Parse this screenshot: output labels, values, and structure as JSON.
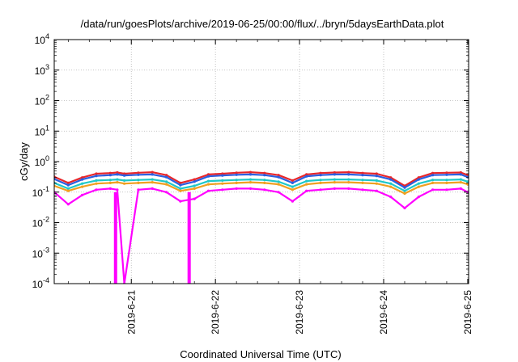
{
  "chart_data": {
    "type": "line",
    "title": "/data/run/goesPlots/archive/2019-06-25/00:00/flux/../bryn/5daysEarthData.plot",
    "xlabel": "Coordinated Universal Time (UTC)",
    "ylabel": "cGy/day",
    "yscale": "log",
    "ylim": [
      0.0001,
      10000
    ],
    "xlim": [
      "2019-06-20T02:00",
      "2019-06-25T00:15"
    ],
    "y_ticks": [
      {
        "value": 0.0001,
        "base": "10",
        "exp": "-4"
      },
      {
        "value": 0.001,
        "base": "10",
        "exp": "-3"
      },
      {
        "value": 0.01,
        "base": "10",
        "exp": "-2"
      },
      {
        "value": 0.1,
        "base": "10",
        "exp": "-1"
      },
      {
        "value": 1,
        "base": "10",
        "exp": "0"
      },
      {
        "value": 10,
        "base": "10",
        "exp": "1"
      },
      {
        "value": 100,
        "base": "10",
        "exp": "2"
      },
      {
        "value": 1000,
        "base": "10",
        "exp": "3"
      },
      {
        "value": 10000,
        "base": "10",
        "exp": "4"
      }
    ],
    "x_ticks": [
      "2019-6-21",
      "2019-6-22",
      "2019-6-23",
      "2019-6-24",
      "2019-6-25"
    ],
    "grid": true,
    "x": [
      "2019-06-20T02:00",
      "2019-06-20T06:00",
      "2019-06-20T10:00",
      "2019-06-20T14:00",
      "2019-06-20T18:00",
      "2019-06-20T20:00",
      "2019-06-20T22:00",
      "2019-06-21T02:00",
      "2019-06-21T06:00",
      "2019-06-21T10:00",
      "2019-06-21T14:00",
      "2019-06-21T18:00",
      "2019-06-21T22:00",
      "2019-06-22T02:00",
      "2019-06-22T06:00",
      "2019-06-22T10:00",
      "2019-06-22T14:00",
      "2019-06-22T18:00",
      "2019-06-22T22:00",
      "2019-06-23T02:00",
      "2019-06-23T06:00",
      "2019-06-23T10:00",
      "2019-06-23T14:00",
      "2019-06-23T18:00",
      "2019-06-23T22:00",
      "2019-06-24T02:00",
      "2019-06-24T06:00",
      "2019-06-24T10:00",
      "2019-06-24T14:00",
      "2019-06-24T18:00",
      "2019-06-24T22:00",
      "2019-06-25T00:00"
    ],
    "series": [
      {
        "color": "#e8262a",
        "values": [
          0.32,
          0.2,
          0.3,
          0.4,
          0.42,
          0.44,
          0.4,
          0.43,
          0.45,
          0.36,
          0.2,
          0.26,
          0.38,
          0.4,
          0.43,
          0.45,
          0.42,
          0.36,
          0.24,
          0.38,
          0.42,
          0.44,
          0.45,
          0.42,
          0.4,
          0.3,
          0.16,
          0.3,
          0.42,
          0.43,
          0.44,
          0.36
        ]
      },
      {
        "color": "#2a5fe0",
        "values": [
          0.27,
          0.17,
          0.26,
          0.34,
          0.36,
          0.38,
          0.35,
          0.37,
          0.38,
          0.31,
          0.17,
          0.22,
          0.33,
          0.35,
          0.37,
          0.38,
          0.36,
          0.31,
          0.2,
          0.33,
          0.36,
          0.38,
          0.38,
          0.36,
          0.34,
          0.26,
          0.14,
          0.26,
          0.36,
          0.37,
          0.38,
          0.31
        ]
      },
      {
        "color": "#1fc8c8",
        "values": [
          0.2,
          0.13,
          0.19,
          0.24,
          0.25,
          0.26,
          0.24,
          0.25,
          0.26,
          0.22,
          0.13,
          0.16,
          0.23,
          0.24,
          0.25,
          0.26,
          0.25,
          0.22,
          0.15,
          0.23,
          0.25,
          0.26,
          0.26,
          0.25,
          0.24,
          0.19,
          0.11,
          0.19,
          0.25,
          0.25,
          0.26,
          0.22
        ]
      },
      {
        "color": "#f0a020",
        "values": [
          0.16,
          0.11,
          0.15,
          0.19,
          0.2,
          0.21,
          0.19,
          0.2,
          0.21,
          0.18,
          0.11,
          0.13,
          0.18,
          0.19,
          0.2,
          0.21,
          0.2,
          0.18,
          0.12,
          0.18,
          0.2,
          0.21,
          0.21,
          0.2,
          0.19,
          0.15,
          0.09,
          0.15,
          0.2,
          0.2,
          0.21,
          0.18
        ]
      },
      {
        "color": "#ff00ff",
        "values": [
          0.1,
          0.04,
          0.08,
          0.12,
          0.13,
          0.12,
          0.0001,
          0.12,
          0.13,
          0.1,
          0.05,
          0.06,
          0.11,
          0.12,
          0.13,
          0.13,
          0.12,
          0.1,
          0.05,
          0.11,
          0.12,
          0.13,
          0.13,
          0.12,
          0.11,
          0.07,
          0.03,
          0.07,
          0.12,
          0.12,
          0.13,
          0.1
        ]
      }
    ],
    "dropouts_to_floor": [
      "2019-06-20T19:30",
      "2019-06-21T16:30"
    ]
  }
}
